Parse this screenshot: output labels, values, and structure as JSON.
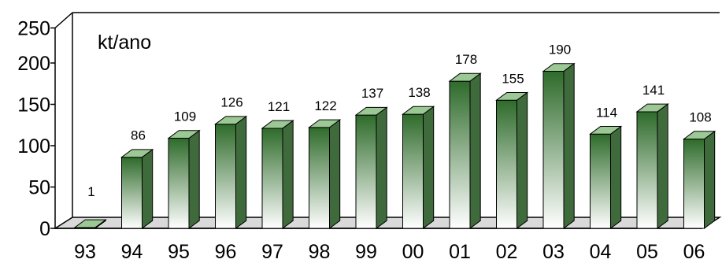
{
  "chart_data": {
    "type": "bar",
    "style": "3d-columns",
    "unit_label": "kt/ano",
    "categories": [
      "93",
      "94",
      "95",
      "96",
      "97",
      "98",
      "99",
      "00",
      "01",
      "02",
      "03",
      "04",
      "05",
      "06"
    ],
    "values": [
      1,
      86,
      109,
      126,
      121,
      122,
      137,
      138,
      178,
      155,
      190,
      114,
      141,
      108
    ],
    "data_labels": [
      "1",
      "86",
      "109",
      "126",
      "121",
      "122",
      "137",
      "138",
      "178",
      "155",
      "190",
      "114",
      "141",
      "108"
    ],
    "yticks": [
      "0",
      "50",
      "100",
      "150",
      "200",
      "250"
    ],
    "ylim": [
      0,
      250
    ],
    "grid": false,
    "legend": "none",
    "colors": {
      "bar_top": "#2e6b2a",
      "bar_bottom": "#ffffff",
      "bar_side": "#3f6b3c",
      "bar_cap": "#9bc894",
      "floor": "#d9d9d9"
    }
  }
}
